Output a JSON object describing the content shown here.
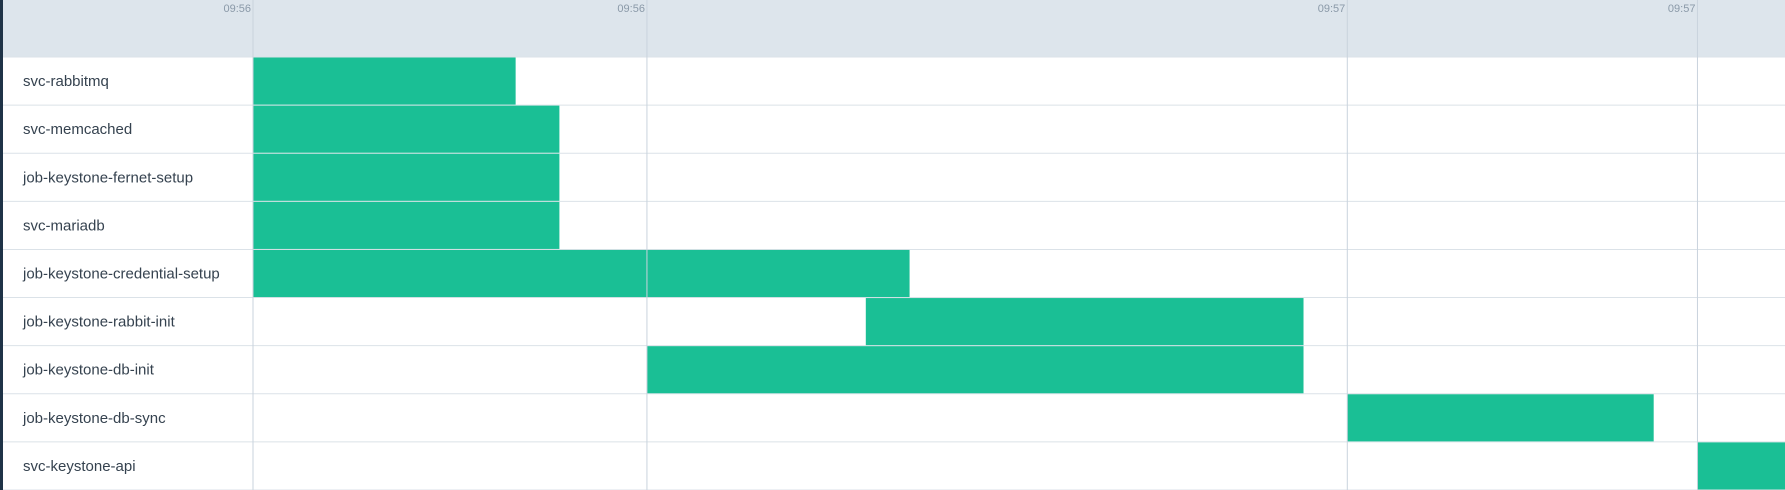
{
  "chart_data": {
    "type": "gantt",
    "x_unit": "seconds",
    "x_range": [
      0,
      35
    ],
    "ticks": [
      {
        "x": 0,
        "label": "09:56"
      },
      {
        "x": 9,
        "label": "09:56"
      },
      {
        "x": 25,
        "label": "09:57"
      },
      {
        "x": 33,
        "label": "09:57"
      }
    ],
    "tasks": [
      {
        "name": "svc-rabbitmq",
        "start": 0,
        "end": 6
      },
      {
        "name": "svc-memcached",
        "start": 0,
        "end": 7
      },
      {
        "name": "job-keystone-fernet-setup",
        "start": 0,
        "end": 7
      },
      {
        "name": "svc-mariadb",
        "start": 0,
        "end": 7
      },
      {
        "name": "job-keystone-credential-setup",
        "start": 0,
        "end": 15
      },
      {
        "name": "job-keystone-rabbit-init",
        "start": 14,
        "end": 24
      },
      {
        "name": "job-keystone-db-init",
        "start": 9,
        "end": 24
      },
      {
        "name": "job-keystone-db-sync",
        "start": 25,
        "end": 32
      },
      {
        "name": "svc-keystone-api",
        "start": 33,
        "end": 35
      }
    ],
    "grid": true,
    "colors": {
      "bar": "#1abf95",
      "header": "#dde5ec"
    }
  }
}
